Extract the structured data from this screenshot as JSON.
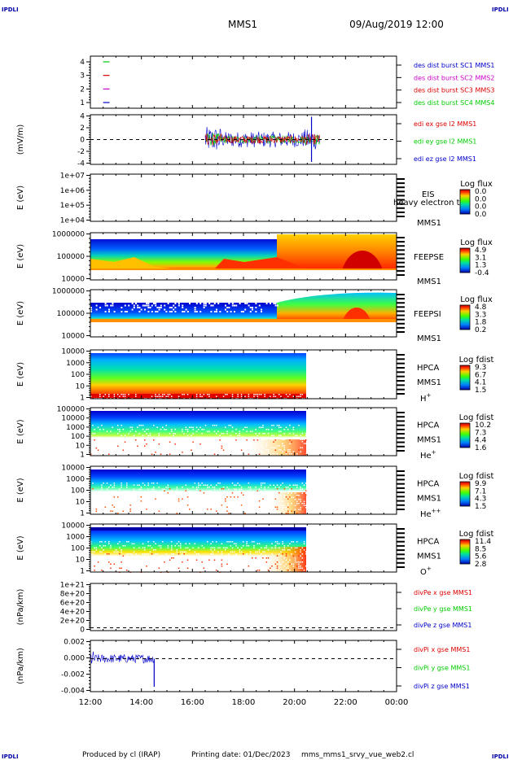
{
  "corner_tag": "IPDLI",
  "header": {
    "spacecraft": "MMS1",
    "datetime": "09/Aug/2019 12:00"
  },
  "footer": {
    "producer": "Produced by cl (IRAP)",
    "printing_date": "Printing date: 01/Dec/2023",
    "filename": "mms_mms1_srvy_vue_web2.cl"
  },
  "time_axis": {
    "ticks": [
      "12:00",
      "14:00",
      "16:00",
      "18:00",
      "20:00",
      "22:00",
      "00:00"
    ]
  },
  "colors": {
    "blue": "#0000cc",
    "green": "#00cc00",
    "red": "#dd0000",
    "magenta": "#cc00cc"
  },
  "chart_data": [
    {
      "id": "burst",
      "type": "scatter",
      "yticks": [
        "4",
        "3",
        "2",
        "1"
      ],
      "legend": [
        {
          "label": "des dist burst SC1 MMS1",
          "color": "#0000cc"
        },
        {
          "label": "des dist burst SC2 MMS2",
          "color": "#cc00cc"
        },
        {
          "label": "des dist burst SC3 MMS3",
          "color": "#dd0000"
        },
        {
          "label": "des dist burst SC4 MMS4",
          "color": "#00cc00"
        }
      ],
      "markers": [
        {
          "sc": 4,
          "t_start": "12:30",
          "t_end": "12:45"
        },
        {
          "sc": 3,
          "t_start": "12:30",
          "t_end": "12:45"
        },
        {
          "sc": 2,
          "t_start": "12:30",
          "t_end": "12:45"
        },
        {
          "sc": 1,
          "t_start": "12:30",
          "t_end": "12:45"
        }
      ]
    },
    {
      "id": "edi",
      "type": "line",
      "ylabel": "(mV/m)",
      "yticks": [
        "4",
        "2",
        "0",
        "-2",
        "-4"
      ],
      "ylim": [
        -5,
        5
      ],
      "legend": [
        {
          "label": "edi ex gse l2 MMS1",
          "color": "#dd0000"
        },
        {
          "label": "edi ey gse l2 MMS1",
          "color": "#00cc00"
        },
        {
          "label": "edi ez gse l2 MMS1",
          "color": "#0000cc"
        }
      ],
      "coverage": [
        "16:30",
        "21:00"
      ]
    },
    {
      "id": "eis",
      "type": "heatmap",
      "ylabel": "E (eV)",
      "yticks": [
        "1e+07",
        "1e+06",
        "1e+05",
        "1e+04"
      ],
      "labels": [
        "EIS",
        "heavy electron to",
        "MMS1"
      ],
      "colorbar": {
        "title": "Log flux",
        "ticks": [
          "0.0",
          "0.0",
          "0.0",
          "0.0"
        ]
      }
    },
    {
      "id": "feepse",
      "type": "heatmap",
      "ylabel": "E (eV)",
      "yticks": [
        "1000000",
        "100000",
        "10000"
      ],
      "labels": [
        "FEEPSE",
        "MMS1"
      ],
      "colorbar": {
        "title": "Log flux",
        "ticks": [
          "4.9",
          "3.1",
          "1.3",
          "-0.4"
        ]
      }
    },
    {
      "id": "feepsi",
      "type": "heatmap",
      "ylabel": "E (eV)",
      "yticks": [
        "1000000",
        "100000",
        "10000"
      ],
      "labels": [
        "FEEPSI",
        "MMS1"
      ],
      "colorbar": {
        "title": "Log flux",
        "ticks": [
          "4.8",
          "3.3",
          "1.8",
          "0.2"
        ]
      }
    },
    {
      "id": "hpca_h",
      "type": "heatmap",
      "ylabel": "E (eV)",
      "yticks": [
        "10000",
        "1000",
        "100",
        "10",
        "1"
      ],
      "labels": [
        "HPCA",
        "MMS1"
      ],
      "species": "H",
      "species_sup": "+",
      "colorbar": {
        "title": "Log fdist",
        "ticks": [
          "9.3",
          "6.7",
          "4.1",
          "1.5"
        ]
      },
      "coverage": [
        "12:00",
        "20:30"
      ]
    },
    {
      "id": "hpca_he",
      "type": "heatmap",
      "ylabel": "E (eV)",
      "yticks": [
        "100000",
        "10000",
        "1000",
        "100",
        "10",
        "1"
      ],
      "labels": [
        "HPCA",
        "MMS1"
      ],
      "species": "He",
      "species_sup": "+",
      "colorbar": {
        "title": "Log fdist",
        "ticks": [
          "10.2",
          "7.3",
          "4.4",
          "1.6"
        ]
      },
      "coverage": [
        "12:00",
        "20:30"
      ]
    },
    {
      "id": "hpca_hepp",
      "type": "heatmap",
      "ylabel": "E (eV)",
      "yticks": [
        "10000",
        "1000",
        "100",
        "10",
        "1"
      ],
      "labels": [
        "HPCA",
        "MMS1"
      ],
      "species": "He",
      "species_sup": "++",
      "colorbar": {
        "title": "Log fdist",
        "ticks": [
          "9.9",
          "7.1",
          "4.3",
          "1.5"
        ]
      },
      "coverage": [
        "12:00",
        "20:30"
      ]
    },
    {
      "id": "hpca_o",
      "type": "heatmap",
      "ylabel": "E (eV)",
      "yticks": [
        "10000",
        "1000",
        "100",
        "10",
        "1"
      ],
      "labels": [
        "HPCA",
        "MMS1"
      ],
      "species": "O",
      "species_sup": "+",
      "colorbar": {
        "title": "Log fdist",
        "ticks": [
          "11.4",
          "8.5",
          "5.6",
          "2.8"
        ]
      },
      "coverage": [
        "12:00",
        "20:30"
      ]
    },
    {
      "id": "divpe",
      "type": "line",
      "ylabel": "(nPa/km)",
      "yticks": [
        "1e+21",
        "8e+20",
        "6e+20",
        "4e+20",
        "2e+20",
        "0"
      ],
      "legend": [
        {
          "label": "divPe x gse MMS1",
          "color": "#dd0000"
        },
        {
          "label": "divPe y gse MMS1",
          "color": "#00cc00"
        },
        {
          "label": "divPe z gse MMS1",
          "color": "#0000cc"
        }
      ]
    },
    {
      "id": "divpi",
      "type": "line",
      "ylabel": "(nPa/km)",
      "yticks": [
        "0.002",
        "0.000",
        "-0.002",
        "-0.004"
      ],
      "ylim": [
        -0.0045,
        0.0025
      ],
      "legend": [
        {
          "label": "divPi x gse MMS1",
          "color": "#dd0000"
        },
        {
          "label": "divPi y gse MMS1",
          "color": "#00cc00"
        },
        {
          "label": "divPi z gse MMS1",
          "color": "#0000cc"
        }
      ],
      "coverage": [
        "12:00",
        "14:30"
      ]
    }
  ]
}
